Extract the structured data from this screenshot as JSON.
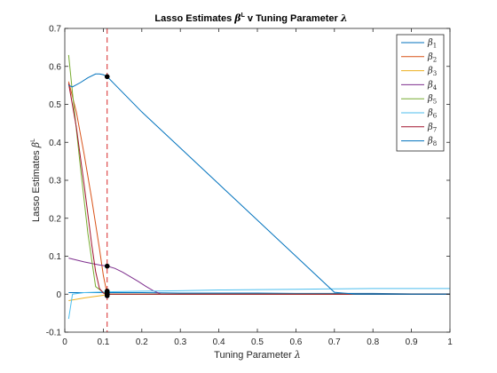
{
  "chart_data": {
    "type": "line",
    "title": "Lasso Estimates β^L v Tuning Parameter λ",
    "title_parts": {
      "prefix": "Lasso Estimates ",
      "beta": "β",
      "beta_sup": "L",
      "middle": " v Tuning Parameter ",
      "lambda": "λ"
    },
    "xlabel": "Tuning Parameter λ",
    "xlabel_parts": {
      "text": "Tuning Parameter ",
      "lambda": "λ"
    },
    "ylabel": "Lasso Estimates β^L",
    "ylabel_parts": {
      "text": "Lasso Estimates ",
      "beta": "β",
      "beta_sup": "L"
    },
    "xlim": [
      0,
      1
    ],
    "ylim": [
      -0.1,
      0.7
    ],
    "xticks": [
      "0",
      "0.1",
      "0.2",
      "0.3",
      "0.4",
      "0.5",
      "0.6",
      "0.7",
      "0.8",
      "0.9",
      "1"
    ],
    "yticks": [
      "-0.1",
      "0",
      "0.1",
      "0.2",
      "0.3",
      "0.4",
      "0.5",
      "0.6",
      "0.7"
    ],
    "grid": false,
    "legend_position": "top-right",
    "selected_lambda": 0.11,
    "vline_color": "#d62728",
    "series": [
      {
        "name": "β_1",
        "color": "#0072bd",
        "x": [
          0.01,
          0.1,
          0.2,
          0.3,
          0.4,
          0.5,
          0.6,
          0.7,
          0.8,
          0.9,
          1.0
        ],
        "y": [
          0.004,
          0.004,
          0.004,
          0.003,
          0.003,
          0.003,
          0.002,
          0.002,
          0.002,
          0.001,
          0.001
        ]
      },
      {
        "name": "β_2",
        "color": "#d95319",
        "x": [
          0.01,
          0.03,
          0.05,
          0.07,
          0.09,
          0.1,
          0.11,
          0.12,
          0.15,
          0.2,
          0.3,
          0.5,
          0.7,
          1.0
        ],
        "y": [
          0.56,
          0.48,
          0.37,
          0.25,
          0.12,
          0.05,
          0.0,
          0.0,
          0.0,
          0.0,
          0.0,
          0.0,
          0.0,
          0.0
        ]
      },
      {
        "name": "β_3",
        "color": "#edb120",
        "x": [
          0.01,
          0.05,
          0.1,
          0.11,
          0.2,
          0.3,
          0.5,
          0.7,
          1.0
        ],
        "y": [
          -0.017,
          -0.01,
          -0.003,
          0.0,
          0.0,
          0.0,
          0.0,
          0.0,
          0.0
        ]
      },
      {
        "name": "β_4",
        "color": "#7e2f8e",
        "x": [
          0.01,
          0.03,
          0.05,
          0.07,
          0.09,
          0.11,
          0.13,
          0.15,
          0.17,
          0.19,
          0.21,
          0.23,
          0.25,
          0.3,
          0.5,
          0.7,
          1.0
        ],
        "y": [
          0.095,
          0.09,
          0.085,
          0.081,
          0.077,
          0.074,
          0.068,
          0.058,
          0.046,
          0.034,
          0.021,
          0.009,
          0.0,
          0.0,
          0.0,
          0.0,
          0.0
        ]
      },
      {
        "name": "β_5",
        "color": "#77ac30",
        "x": [
          0.01,
          0.02,
          0.04,
          0.06,
          0.08,
          0.1,
          0.11,
          0.15,
          0.3,
          0.5,
          0.7,
          1.0
        ],
        "y": [
          0.63,
          0.53,
          0.34,
          0.16,
          0.02,
          0.005,
          0.0,
          0.0,
          0.0,
          0.0,
          0.0,
          0.0
        ]
      },
      {
        "name": "β_6",
        "color": "#4dbeee",
        "x": [
          0.01,
          0.02,
          0.05,
          0.1,
          0.2,
          0.3,
          0.4,
          0.5,
          0.6,
          0.7,
          0.8,
          0.9,
          1.0
        ],
        "y": [
          -0.065,
          0.0,
          0.004,
          0.006,
          0.008,
          0.009,
          0.011,
          0.012,
          0.013,
          0.014,
          0.015,
          0.015,
          0.015
        ]
      },
      {
        "name": "β_7",
        "color": "#a2142f",
        "x": [
          0.01,
          0.03,
          0.05,
          0.07,
          0.08,
          0.09,
          0.1,
          0.11,
          0.2,
          0.3,
          0.5,
          0.7,
          1.0
        ],
        "y": [
          0.555,
          0.44,
          0.29,
          0.13,
          0.06,
          0.015,
          0.003,
          0.0,
          0.0,
          0.0,
          0.0,
          0.0,
          0.0
        ]
      },
      {
        "name": "β_8",
        "color": "#0072bd",
        "x": [
          0.01,
          0.02,
          0.04,
          0.06,
          0.08,
          0.09,
          0.1,
          0.11,
          0.2,
          0.3,
          0.4,
          0.5,
          0.6,
          0.7,
          0.755,
          0.8,
          0.9,
          1.0
        ],
        "y": [
          0.55,
          0.546,
          0.557,
          0.57,
          0.58,
          0.58,
          0.578,
          0.573,
          0.48,
          0.385,
          0.29,
          0.195,
          0.1,
          0.005,
          0.0,
          0.0,
          0.0,
          0.0
        ]
      }
    ],
    "markers": [
      {
        "x": 0.11,
        "y": 0.573
      },
      {
        "x": 0.11,
        "y": 0.074
      },
      {
        "x": 0.11,
        "y": 0.008
      },
      {
        "x": 0.11,
        "y": 0.003
      },
      {
        "x": 0.11,
        "y": 0.0
      },
      {
        "x": 0.11,
        "y": -0.004
      }
    ]
  }
}
